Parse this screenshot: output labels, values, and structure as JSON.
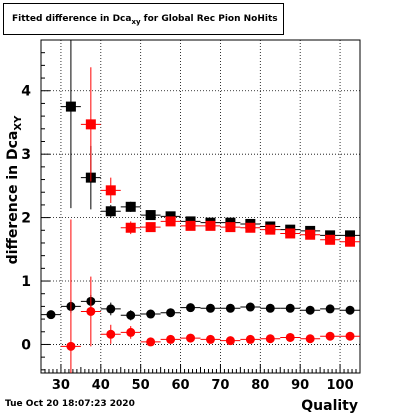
{
  "chart_data": {
    "type": "scatter",
    "title": "Fitted difference in Dca",
    "title_subscript": "xy",
    "title_suffix": " for Global Rec Pion NoHits",
    "xlabel": "Quality",
    "ylabel": "difference in Dca",
    "ylabel_subscript": "XY",
    "xlim": [
      25,
      105
    ],
    "ylim": [
      -0.45,
      4.8
    ],
    "xticks": [
      "30",
      "40",
      "50",
      "60",
      "70",
      "80",
      "90",
      "100"
    ],
    "yticks": [
      "0",
      "1",
      "2",
      "3",
      "4"
    ],
    "grid": true,
    "footer": "Tue Oct 20 18:07:23 2020",
    "series": [
      {
        "marker": "square",
        "color": "#000000",
        "points": [
          {
            "x": 32.5,
            "y": 3.75,
            "yerr": 1.6
          },
          {
            "x": 37.5,
            "y": 2.63,
            "yerr": 0.5
          },
          {
            "x": 42.5,
            "y": 2.1,
            "yerr": 0.1
          },
          {
            "x": 47.5,
            "y": 2.17,
            "yerr": 0.08
          },
          {
            "x": 52.5,
            "y": 2.04,
            "yerr": 0.05
          },
          {
            "x": 57.5,
            "y": 2.02,
            "yerr": 0.05
          },
          {
            "x": 62.5,
            "y": 1.94,
            "yerr": 0.04
          },
          {
            "x": 67.5,
            "y": 1.92,
            "yerr": 0.04
          },
          {
            "x": 72.5,
            "y": 1.92,
            "yerr": 0.04
          },
          {
            "x": 77.5,
            "y": 1.9,
            "yerr": 0.04
          },
          {
            "x": 82.5,
            "y": 1.86,
            "yerr": 0.04
          },
          {
            "x": 87.5,
            "y": 1.81,
            "yerr": 0.04
          },
          {
            "x": 92.5,
            "y": 1.79,
            "yerr": 0.04
          },
          {
            "x": 97.5,
            "y": 1.72,
            "yerr": 0.04
          },
          {
            "x": 102.5,
            "y": 1.72,
            "yerr": 0.04
          }
        ]
      },
      {
        "marker": "square",
        "color": "#ff0000",
        "points": [
          {
            "x": 37.5,
            "y": 3.47,
            "yerr": 0.9
          },
          {
            "x": 42.5,
            "y": 2.43,
            "yerr": 0.2
          },
          {
            "x": 47.5,
            "y": 1.84,
            "yerr": 0.1
          },
          {
            "x": 52.5,
            "y": 1.85,
            "yerr": 0.06
          },
          {
            "x": 57.5,
            "y": 1.94,
            "yerr": 0.05
          },
          {
            "x": 62.5,
            "y": 1.87,
            "yerr": 0.05
          },
          {
            "x": 67.5,
            "y": 1.87,
            "yerr": 0.04
          },
          {
            "x": 72.5,
            "y": 1.85,
            "yerr": 0.04
          },
          {
            "x": 77.5,
            "y": 1.84,
            "yerr": 0.04
          },
          {
            "x": 82.5,
            "y": 1.81,
            "yerr": 0.04
          },
          {
            "x": 87.5,
            "y": 1.75,
            "yerr": 0.04
          },
          {
            "x": 92.5,
            "y": 1.73,
            "yerr": 0.04
          },
          {
            "x": 97.5,
            "y": 1.65,
            "yerr": 0.04
          },
          {
            "x": 102.5,
            "y": 1.62,
            "yerr": 0.04
          }
        ]
      },
      {
        "marker": "circle",
        "color": "#000000",
        "points": [
          {
            "x": 27.5,
            "y": 0.47,
            "yerr": 0.05
          },
          {
            "x": 32.5,
            "y": 0.6,
            "yerr": 0.1
          },
          {
            "x": 37.5,
            "y": 0.68,
            "yerr": 0.1
          },
          {
            "x": 42.5,
            "y": 0.56,
            "yerr": 0.1
          },
          {
            "x": 47.5,
            "y": 0.46,
            "yerr": 0.08
          },
          {
            "x": 52.5,
            "y": 0.48,
            "yerr": 0.04
          },
          {
            "x": 57.5,
            "y": 0.5,
            "yerr": 0.03
          },
          {
            "x": 62.5,
            "y": 0.58,
            "yerr": 0.03
          },
          {
            "x": 67.5,
            "y": 0.57,
            "yerr": 0.03
          },
          {
            "x": 72.5,
            "y": 0.57,
            "yerr": 0.03
          },
          {
            "x": 77.5,
            "y": 0.59,
            "yerr": 0.03
          },
          {
            "x": 82.5,
            "y": 0.57,
            "yerr": 0.03
          },
          {
            "x": 87.5,
            "y": 0.57,
            "yerr": 0.03
          },
          {
            "x": 92.5,
            "y": 0.54,
            "yerr": 0.03
          },
          {
            "x": 97.5,
            "y": 0.56,
            "yerr": 0.03
          },
          {
            "x": 102.5,
            "y": 0.54,
            "yerr": 0.03
          }
        ]
      },
      {
        "marker": "circle",
        "color": "#ff0000",
        "points": [
          {
            "x": 32.5,
            "y": -0.03,
            "yerr": 2.0
          },
          {
            "x": 37.5,
            "y": 0.52,
            "yerr": 0.55
          },
          {
            "x": 42.5,
            "y": 0.16,
            "yerr": 0.15
          },
          {
            "x": 47.5,
            "y": 0.19,
            "yerr": 0.1
          },
          {
            "x": 52.5,
            "y": 0.04,
            "yerr": 0.04
          },
          {
            "x": 57.5,
            "y": 0.08,
            "yerr": 0.03
          },
          {
            "x": 62.5,
            "y": 0.1,
            "yerr": 0.03
          },
          {
            "x": 67.5,
            "y": 0.08,
            "yerr": 0.03
          },
          {
            "x": 72.5,
            "y": 0.06,
            "yerr": 0.03
          },
          {
            "x": 77.5,
            "y": 0.08,
            "yerr": 0.03
          },
          {
            "x": 82.5,
            "y": 0.09,
            "yerr": 0.03
          },
          {
            "x": 87.5,
            "y": 0.11,
            "yerr": 0.03
          },
          {
            "x": 92.5,
            "y": 0.09,
            "yerr": 0.03
          },
          {
            "x": 97.5,
            "y": 0.13,
            "yerr": 0.03
          },
          {
            "x": 102.5,
            "y": 0.13,
            "yerr": 0.03
          }
        ]
      }
    ]
  }
}
